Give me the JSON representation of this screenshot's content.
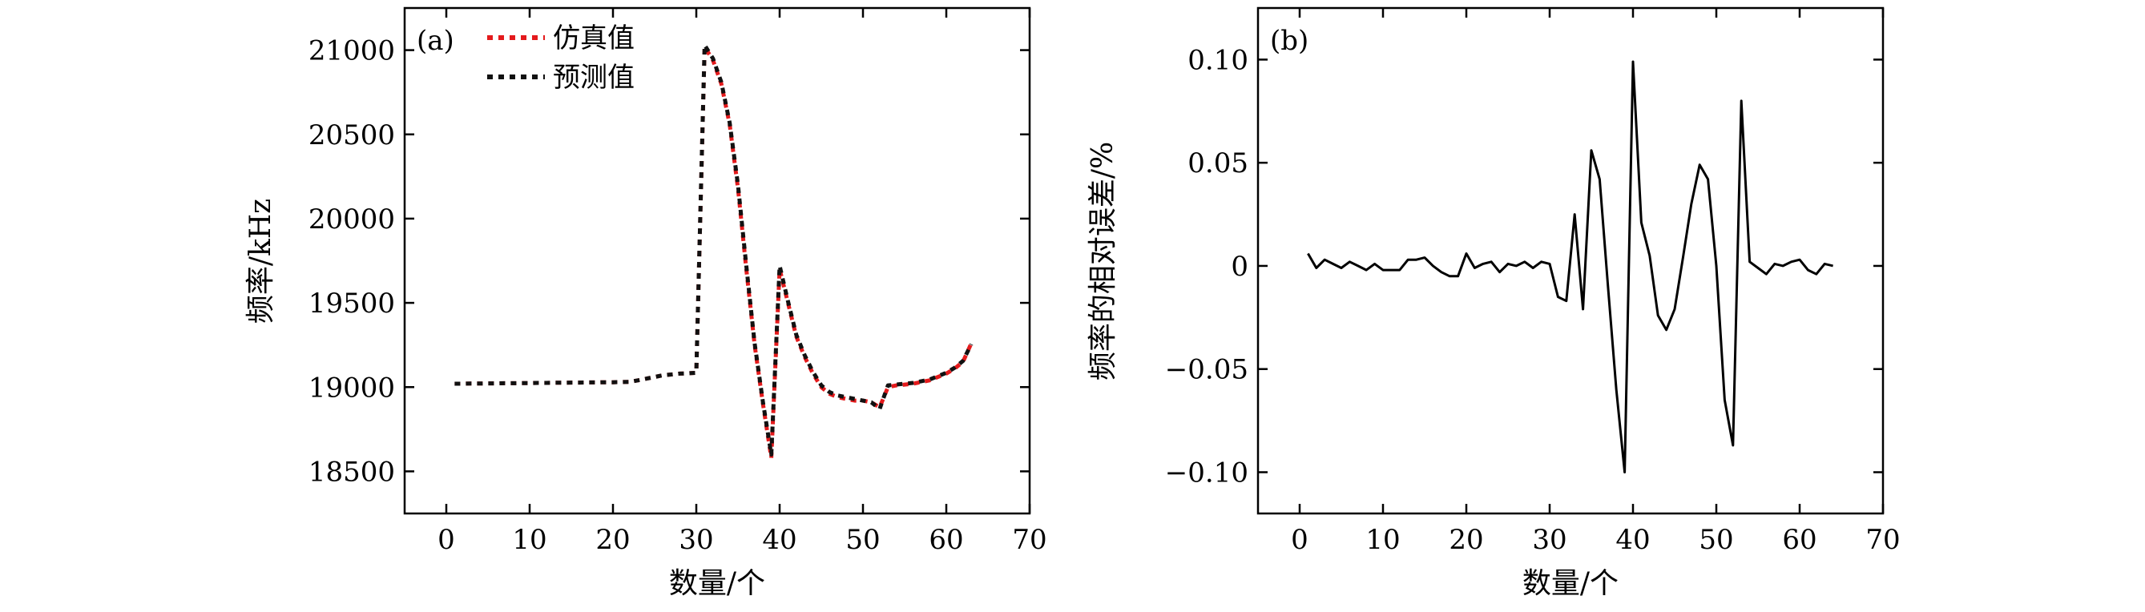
{
  "chart_data": [
    {
      "type": "line",
      "panel_label": "(a)",
      "xlabel": "数量/个",
      "ylabel": "频率/kHz",
      "xlim": [
        -5,
        70
      ],
      "ylim": [
        18250,
        21250
      ],
      "xticks": [
        0,
        10,
        20,
        30,
        40,
        50,
        60,
        70
      ],
      "yticks": [
        18500,
        19000,
        19500,
        20000,
        20500,
        21000
      ],
      "legend": "top-left",
      "grid": false,
      "x": [
        1,
        2,
        3,
        4,
        5,
        6,
        7,
        8,
        9,
        10,
        11,
        12,
        13,
        14,
        15,
        16,
        17,
        18,
        19,
        20,
        21,
        22,
        23,
        24,
        25,
        26,
        27,
        28,
        29,
        30,
        31,
        32,
        33,
        34,
        35,
        36,
        37,
        38,
        39,
        40,
        41,
        42,
        43,
        44,
        45,
        46,
        47,
        48,
        49,
        50,
        51,
        52,
        53,
        54,
        55,
        56,
        57,
        58,
        59,
        60,
        61,
        62,
        63
      ],
      "series": [
        {
          "name": "仿真值",
          "color": "#e41a1c",
          "values": [
            19020,
            19020,
            19021,
            19021,
            19022,
            19022,
            19023,
            19023,
            19024,
            19024,
            19025,
            19025,
            19026,
            19026,
            19027,
            19027,
            19028,
            19028,
            19029,
            19029,
            19030,
            19031,
            19040,
            19050,
            19060,
            19070,
            19075,
            19080,
            19082,
            19085,
            21020,
            20940,
            20800,
            20560,
            20180,
            19700,
            19250,
            18900,
            18580,
            19700,
            19500,
            19300,
            19180,
            19080,
            19000,
            18960,
            18940,
            18930,
            18920,
            18920,
            18910,
            18880,
            19000,
            19010,
            19015,
            19020,
            19030,
            19040,
            19060,
            19080,
            19110,
            19150,
            19260
          ]
        },
        {
          "name": "预测值",
          "color": "#111111",
          "values": [
            19020,
            19020,
            19021,
            19021,
            19022,
            19022,
            19023,
            19023,
            19024,
            19024,
            19025,
            19025,
            19026,
            19026,
            19027,
            19027,
            19028,
            19028,
            19029,
            19029,
            19030,
            19031,
            19040,
            19050,
            19060,
            19070,
            19075,
            19080,
            19082,
            19085,
            21030,
            20950,
            20810,
            20570,
            20200,
            19720,
            19260,
            18910,
            18600,
            19720,
            19510,
            19310,
            19190,
            19090,
            19010,
            18970,
            18950,
            18940,
            18930,
            18920,
            18910,
            18870,
            19010,
            19015,
            19020,
            19025,
            19035,
            19045,
            19065,
            19085,
            19115,
            19155,
            19255
          ]
        }
      ]
    },
    {
      "type": "line",
      "panel_label": "(b)",
      "xlabel": "数量/个",
      "ylabel": "频率的相对误差/%",
      "xlim": [
        -5,
        70
      ],
      "ylim": [
        -0.12,
        0.125
      ],
      "xticks": [
        0,
        10,
        20,
        30,
        40,
        50,
        60,
        70
      ],
      "yticks": [
        -0.1,
        -0.05,
        0,
        0.05,
        0.1
      ],
      "yticklabels": [
        "−0.10",
        "−0.05",
        "0",
        "0.05",
        "0.10"
      ],
      "grid": false,
      "x": [
        1,
        2,
        3,
        4,
        5,
        6,
        7,
        8,
        9,
        10,
        11,
        12,
        13,
        14,
        15,
        16,
        17,
        18,
        19,
        20,
        21,
        22,
        23,
        24,
        25,
        26,
        27,
        28,
        29,
        30,
        31,
        32,
        33,
        34,
        35,
        36,
        37,
        38,
        39,
        40,
        41,
        42,
        43,
        44,
        45,
        46,
        47,
        48,
        49,
        50,
        51,
        52,
        53,
        54,
        55,
        56,
        57,
        58,
        59,
        60,
        61,
        62,
        63,
        64
      ],
      "series": [
        {
          "color": "#000000",
          "values": [
            0.006,
            -0.001,
            0.003,
            0.001,
            -0.001,
            0.002,
            0.0,
            -0.002,
            0.001,
            -0.002,
            -0.002,
            -0.002,
            0.003,
            0.003,
            0.004,
            0.0,
            -0.003,
            -0.005,
            -0.005,
            0.006,
            -0.001,
            0.001,
            0.002,
            -0.003,
            0.001,
            0.0,
            0.002,
            -0.001,
            0.002,
            0.001,
            -0.015,
            -0.017,
            0.025,
            -0.021,
            0.056,
            0.042,
            -0.01,
            -0.06,
            -0.1,
            0.099,
            0.021,
            0.005,
            -0.024,
            -0.031,
            -0.021,
            0.004,
            0.03,
            0.049,
            0.042,
            0.0,
            -0.065,
            -0.087,
            0.08,
            0.002,
            -0.001,
            -0.004,
            0.001,
            0.0,
            0.002,
            0.003,
            -0.002,
            -0.004,
            0.001,
            0.0
          ]
        }
      ]
    }
  ]
}
